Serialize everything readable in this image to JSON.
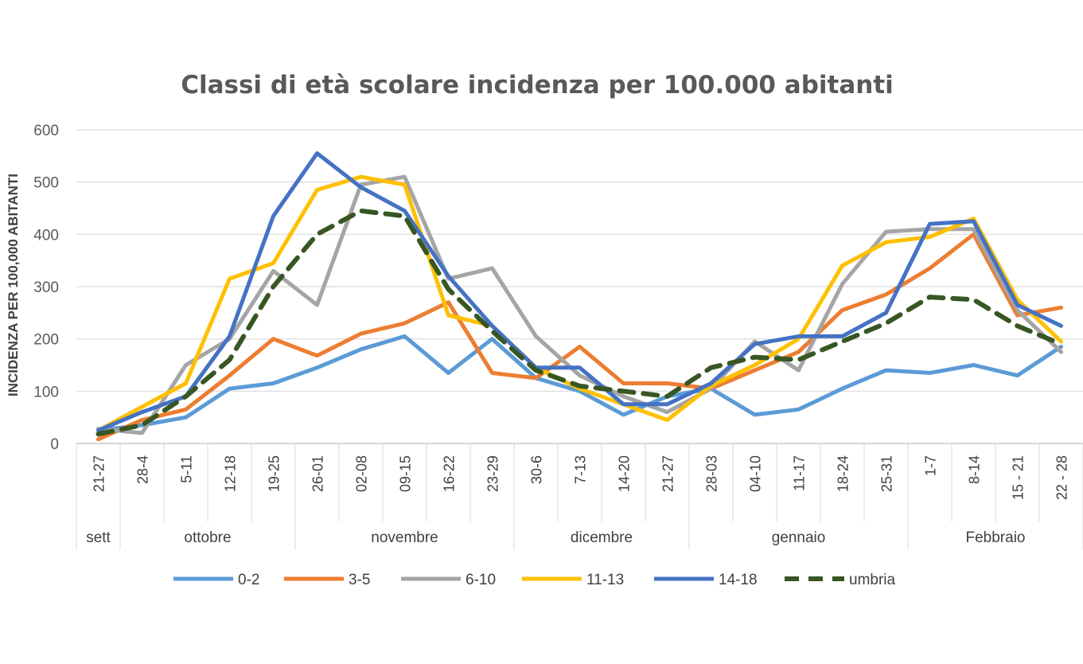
{
  "chart_data": {
    "type": "line",
    "title": "Classi di età scolare incidenza per 100.000 abitanti",
    "ylabel": "INCIDENZA PER 100,000 ABITANTI",
    "xlabel": "",
    "ylim": [
      0,
      600
    ],
    "yticks": [
      "0",
      "100",
      "200",
      "300",
      "400",
      "500",
      "600"
    ],
    "categories": [
      "21-27",
      "28-4",
      "5-11",
      "12-18",
      "19-25",
      "26-01",
      "02-08",
      "09-15",
      "16-22",
      "23-29",
      "30-6",
      "7-13",
      "14-20",
      "21-27",
      "28-03",
      "04-10",
      "11-17",
      "18-24",
      "25-31",
      "1-7",
      "8-14",
      "15 - 21",
      "22 - 28"
    ],
    "month_groups": [
      {
        "label": "sett",
        "start": 0,
        "end": 0
      },
      {
        "label": "ottobre",
        "start": 1,
        "end": 4
      },
      {
        "label": "novembre",
        "start": 5,
        "end": 9
      },
      {
        "label": "dicembre",
        "start": 10,
        "end": 13
      },
      {
        "label": "gennaio",
        "start": 14,
        "end": 18
      },
      {
        "label": "Febbraio",
        "start": 19,
        "end": 22
      }
    ],
    "grid": true,
    "legend_position": "bottom",
    "series": [
      {
        "name": "0-2",
        "color": "#5B9BD5",
        "dashed": false,
        "values": [
          25,
          35,
          50,
          105,
          115,
          145,
          180,
          205,
          135,
          200,
          125,
          100,
          55,
          90,
          105,
          55,
          65,
          105,
          140,
          135,
          150,
          130,
          185
        ]
      },
      {
        "name": "3-5",
        "color": "#ED7D31",
        "dashed": false,
        "values": [
          8,
          45,
          65,
          130,
          200,
          168,
          210,
          230,
          270,
          135,
          125,
          185,
          115,
          115,
          105,
          140,
          175,
          255,
          285,
          335,
          400,
          245,
          260
        ]
      },
      {
        "name": "6-10",
        "color": "#A5A5A5",
        "dashed": false,
        "values": [
          28,
          20,
          150,
          200,
          330,
          265,
          495,
          510,
          315,
          335,
          205,
          130,
          90,
          60,
          105,
          195,
          140,
          305,
          405,
          410,
          410,
          255,
          175
        ]
      },
      {
        "name": "11-13",
        "color": "#FFC000",
        "dashed": false,
        "values": [
          25,
          70,
          115,
          315,
          345,
          485,
          510,
          495,
          245,
          225,
          145,
          105,
          75,
          45,
          110,
          150,
          200,
          340,
          385,
          395,
          430,
          275,
          195
        ]
      },
      {
        "name": "14-18",
        "color": "#4472C4",
        "dashed": false,
        "values": [
          25,
          60,
          90,
          205,
          435,
          555,
          490,
          445,
          320,
          225,
          145,
          145,
          75,
          75,
          115,
          190,
          205,
          205,
          250,
          420,
          425,
          265,
          225
        ]
      },
      {
        "name": "umbria",
        "color": "#375623",
        "dashed": true,
        "values": [
          18,
          35,
          90,
          160,
          300,
          400,
          445,
          435,
          295,
          215,
          140,
          110,
          100,
          90,
          145,
          165,
          160,
          195,
          230,
          280,
          275,
          225,
          190
        ]
      }
    ]
  }
}
